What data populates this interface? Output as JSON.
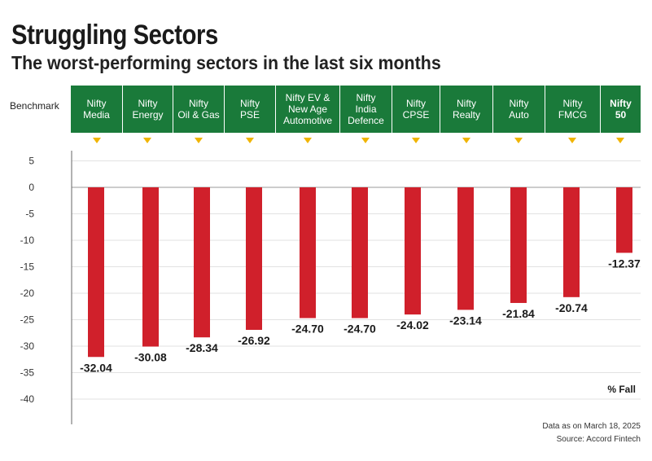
{
  "header": {
    "title": "Struggling Sectors",
    "subtitle": "The worst-performing sectors in the last six months",
    "benchmark_label": "Benchmark"
  },
  "colors": {
    "bar": "#d0202b",
    "header_band": "#1a7a3a",
    "marker": "#f0b400"
  },
  "chart_data": {
    "type": "bar",
    "categories": [
      "Nifty\nMedia",
      "Nifty\nEnergy",
      "Nifty\nOil & Gas",
      "Nifty\nPSE",
      "Nifty EV &\nNew Age\nAutomotive",
      "Nifty\nIndia\nDefence",
      "Nifty\nCPSE",
      "Nifty\nRealty",
      "Nifty\nAuto",
      "Nifty\nFMCG",
      "Nifty\n50"
    ],
    "values": [
      -32.04,
      -30.08,
      -28.34,
      -26.92,
      -24.7,
      -24.7,
      -24.02,
      -23.14,
      -21.84,
      -20.74,
      -12.37
    ],
    "value_labels": [
      "-32.04",
      "-30.08",
      "-28.34",
      "-26.92",
      "-24.70",
      "-24.70",
      "-24.02",
      "-23.14",
      "-21.84",
      "-20.74",
      "-12.37"
    ],
    "bold_categories": [
      10
    ],
    "yticks": [
      5,
      0,
      -5,
      -10,
      -15,
      -20,
      -25,
      -30,
      -35,
      -40
    ],
    "ytick_labels": [
      "5",
      "0",
      "-5",
      "-10",
      "-15",
      "-20",
      "-25",
      "-30",
      "-35",
      "-40"
    ],
    "ylim": [
      -40,
      5
    ],
    "unit_label": "% Fall",
    "grid": true
  },
  "footer": {
    "date_note": "Data as on March 18, 2025",
    "source": "Source: Accord Fintech"
  }
}
